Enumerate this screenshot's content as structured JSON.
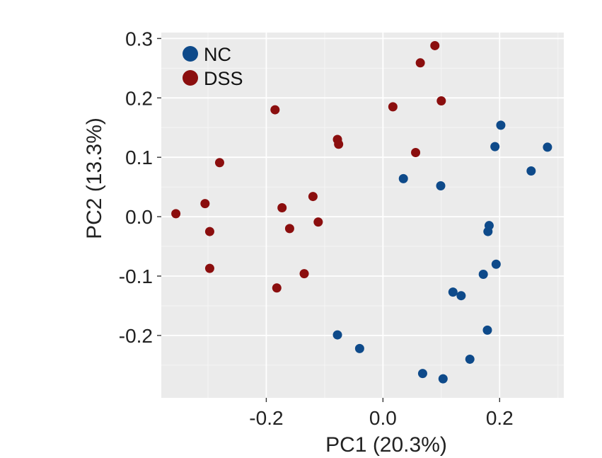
{
  "chart_data": {
    "type": "scatter",
    "xlabel": "PC1 (20.3%)",
    "ylabel": "PC2 (13.3%)",
    "xlim": [
      -0.38,
      0.31
    ],
    "ylim": [
      -0.305,
      0.31
    ],
    "x_ticks": [
      {
        "value": -0.2,
        "label": "-0.2"
      },
      {
        "value": 0.0,
        "label": "0.0"
      },
      {
        "value": 0.2,
        "label": "0.2"
      }
    ],
    "y_ticks": [
      {
        "value": 0.3,
        "label": "0.3"
      },
      {
        "value": 0.2,
        "label": "0.2"
      },
      {
        "value": 0.1,
        "label": "0.1"
      },
      {
        "value": 0.0,
        "label": "0.0"
      },
      {
        "value": -0.1,
        "label": "-0.1"
      },
      {
        "value": -0.2,
        "label": "-0.2"
      }
    ],
    "grid": true,
    "background_color": "#EBEBEB",
    "legend_position": "top-left",
    "series": [
      {
        "name": "NC",
        "color": "#0E4A8A",
        "points": [
          {
            "x": 0.202,
            "y": 0.154
          },
          {
            "x": 0.192,
            "y": 0.118
          },
          {
            "x": 0.282,
            "y": 0.117
          },
          {
            "x": 0.254,
            "y": 0.077
          },
          {
            "x": 0.035,
            "y": 0.064
          },
          {
            "x": 0.099,
            "y": 0.052
          },
          {
            "x": 0.182,
            "y": -0.015
          },
          {
            "x": 0.18,
            "y": -0.025
          },
          {
            "x": 0.194,
            "y": -0.08
          },
          {
            "x": 0.172,
            "y": -0.097
          },
          {
            "x": 0.12,
            "y": -0.127
          },
          {
            "x": 0.134,
            "y": -0.133
          },
          {
            "x": 0.179,
            "y": -0.191
          },
          {
            "x": -0.078,
            "y": -0.199
          },
          {
            "x": -0.04,
            "y": -0.222
          },
          {
            "x": 0.149,
            "y": -0.24
          },
          {
            "x": 0.068,
            "y": -0.264
          },
          {
            "x": 0.103,
            "y": -0.273
          }
        ]
      },
      {
        "name": "DSS",
        "color": "#8B0E0E",
        "points": [
          {
            "x": 0.089,
            "y": 0.288
          },
          {
            "x": 0.064,
            "y": 0.259
          },
          {
            "x": 0.1,
            "y": 0.195
          },
          {
            "x": 0.017,
            "y": 0.185
          },
          {
            "x": -0.185,
            "y": 0.18
          },
          {
            "x": -0.078,
            "y": 0.13
          },
          {
            "x": -0.076,
            "y": 0.122
          },
          {
            "x": 0.056,
            "y": 0.108
          },
          {
            "x": -0.28,
            "y": 0.091
          },
          {
            "x": -0.12,
            "y": 0.034
          },
          {
            "x": -0.305,
            "y": 0.022
          },
          {
            "x": -0.173,
            "y": 0.015
          },
          {
            "x": -0.355,
            "y": 0.005
          },
          {
            "x": -0.111,
            "y": -0.009
          },
          {
            "x": -0.16,
            "y": -0.02
          },
          {
            "x": -0.297,
            "y": -0.025
          },
          {
            "x": -0.297,
            "y": -0.087
          },
          {
            "x": -0.135,
            "y": -0.096
          },
          {
            "x": -0.182,
            "y": -0.12
          }
        ]
      }
    ]
  }
}
